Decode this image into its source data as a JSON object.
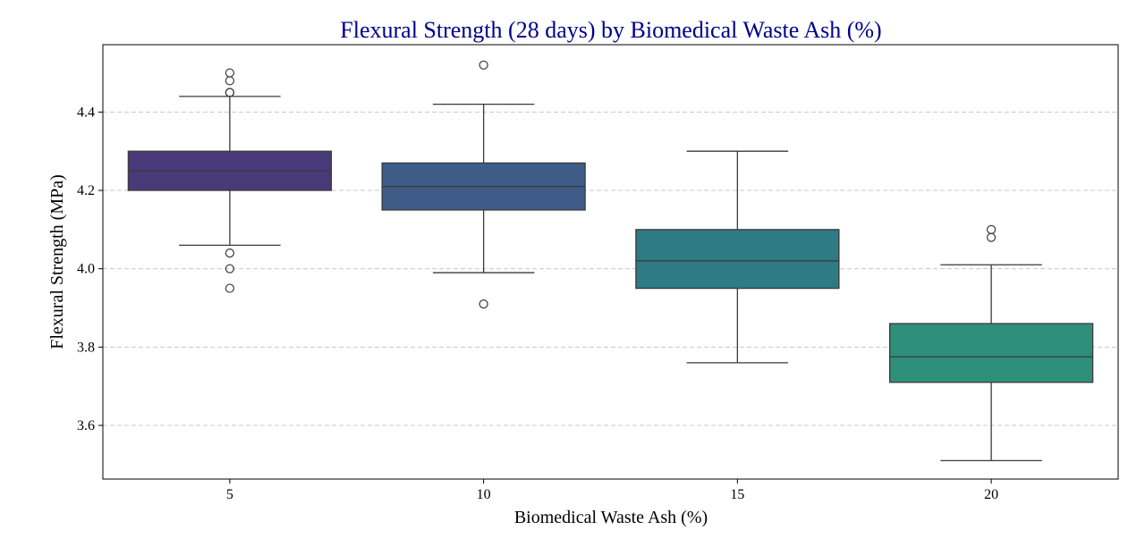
{
  "chart_data": {
    "type": "box",
    "title": "Flexural Strength (28 days) by Biomedical Waste Ash (%)",
    "xlabel": "Biomedical Waste Ash (%)",
    "ylabel": "Flexural Strength (MPa)",
    "ylim": [
      3.463,
      4.572
    ],
    "yticks": [
      3.6,
      3.8,
      4.0,
      4.2,
      4.4
    ],
    "ytick_labels": [
      "3.6",
      "3.8",
      "4.0",
      "4.2",
      "4.4"
    ],
    "grid": "horizontal dashed",
    "categories": [
      "5",
      "10",
      "15",
      "20"
    ],
    "boxes": [
      {
        "category": "5",
        "whislo": 4.06,
        "q1": 4.2,
        "med": 4.25,
        "q3": 4.3,
        "whishi": 4.44,
        "fliers": [
          4.5,
          4.48,
          4.45,
          4.45,
          4.04,
          4.0,
          3.95
        ],
        "color": "#483a78"
      },
      {
        "category": "10",
        "whislo": 3.99,
        "q1": 4.15,
        "med": 4.21,
        "q3": 4.27,
        "whishi": 4.42,
        "fliers": [
          4.52,
          3.91
        ],
        "color": "#3e5c87"
      },
      {
        "category": "15",
        "whislo": 3.76,
        "q1": 3.95,
        "med": 4.02,
        "q3": 4.1,
        "whishi": 4.3,
        "fliers": [],
        "color": "#2e7a85"
      },
      {
        "category": "20",
        "whislo": 3.51,
        "q1": 3.71,
        "med": 3.775,
        "q3": 3.86,
        "whishi": 4.01,
        "fliers": [
          4.1,
          4.08
        ],
        "color": "#2e8f7b"
      }
    ]
  }
}
